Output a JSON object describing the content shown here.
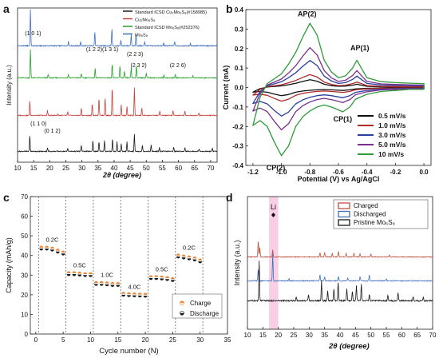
{
  "chart_data": [
    {
      "panel": "a",
      "type": "line",
      "xlabel": "2θ (degree)",
      "ylabel": "Intensity (a.u.)",
      "xlim": [
        10,
        72
      ],
      "x_ticks": [
        10,
        15,
        20,
        25,
        30,
        35,
        40,
        45,
        50,
        55,
        60,
        65,
        70
      ],
      "legend": [
        "Standard ICSD Cu₂Mo₆S₈(#158985)",
        "Cu₂Mo₆S₈",
        "Standard ICSD Mo₆S₈(#252376)",
        "Mo₆S₈"
      ],
      "series": [
        {
          "name": "Mo₆S₈",
          "color": "#3e6fbf",
          "offset": 3,
          "peaks": [
            [
              14.0,
              1.0
            ],
            [
              25.8,
              0.12
            ],
            [
              29.6,
              0.1
            ],
            [
              34.0,
              0.38
            ],
            [
              39.3,
              0.48
            ],
            [
              42.1,
              0.15
            ],
            [
              45.3,
              0.3
            ],
            [
              46.8,
              0.32
            ],
            [
              49.5,
              0.12
            ],
            [
              55.4,
              0.08
            ],
            [
              58.8,
              0.12
            ],
            [
              63.7,
              0.07
            ]
          ]
        },
        {
          "name": "Standard ICSD Mo₆S₈(#252376)",
          "color": "#27a02a",
          "offset": 2,
          "peaks": [
            [
              14.0,
              0.9
            ],
            [
              19.5,
              0.1
            ],
            [
              25.8,
              0.12
            ],
            [
              29.8,
              0.14
            ],
            [
              34.1,
              0.3
            ],
            [
              39.4,
              0.45
            ],
            [
              41.8,
              0.38
            ],
            [
              43.2,
              0.2
            ],
            [
              45.3,
              0.32
            ],
            [
              46.9,
              0.38
            ],
            [
              50.0,
              0.14
            ],
            [
              55.5,
              0.08
            ],
            [
              59.0,
              0.1
            ],
            [
              64.5,
              0.06
            ]
          ]
        },
        {
          "name": "Cu₂Mo₆S₈",
          "color": "#c9403a",
          "offset": 1,
          "peaks": [
            [
              13.8,
              0.5
            ],
            [
              19.3,
              0.18
            ],
            [
              22.5,
              0.06
            ],
            [
              25.6,
              0.12
            ],
            [
              29.8,
              0.25
            ],
            [
              33.2,
              0.4
            ],
            [
              35.3,
              0.58
            ],
            [
              37.2,
              0.6
            ],
            [
              39.4,
              0.95
            ],
            [
              42.2,
              0.35
            ],
            [
              44.0,
              0.3
            ],
            [
              46.3,
              0.92
            ],
            [
              48.6,
              0.25
            ],
            [
              54.2,
              0.15
            ],
            [
              58.3,
              0.17
            ],
            [
              62.0,
              0.16
            ],
            [
              66.3,
              0.08
            ]
          ]
        },
        {
          "name": "Standard ICSD Cu₂Mo₆S₈(#158985)",
          "color": "#1a1a1a",
          "offset": 0,
          "peaks": [
            [
              13.8,
              0.5
            ],
            [
              19.3,
              0.12
            ],
            [
              25.6,
              0.1
            ],
            [
              29.8,
              0.2
            ],
            [
              33.4,
              0.35
            ],
            [
              35.3,
              0.3
            ],
            [
              37.0,
              0.35
            ],
            [
              39.5,
              0.4
            ],
            [
              40.9,
              0.3
            ],
            [
              42.2,
              0.25
            ],
            [
              44.0,
              0.3
            ],
            [
              46.3,
              0.55
            ],
            [
              48.8,
              0.2
            ],
            [
              51.5,
              0.2
            ],
            [
              54.1,
              0.12
            ],
            [
              58.5,
              0.14
            ],
            [
              62.0,
              0.12
            ],
            [
              66.4,
              0.08
            ],
            [
              70.5,
              0.1
            ]
          ]
        }
      ],
      "annotations": [
        {
          "text": "(1 0 1)",
          "x": 14.8,
          "row": 3
        },
        {
          "text": "(1 2 2)",
          "x": 33.8,
          "row": 3
        },
        {
          "text": "(1 3 1)",
          "x": 38.8,
          "row": 3
        },
        {
          "text": "(2 2 3)",
          "x": 46.5,
          "row": 3
        },
        {
          "text": "(2 3 2)",
          "x": 47.6,
          "row": 3
        },
        {
          "text": "(2 2 6)",
          "x": 59.8,
          "row": 3
        },
        {
          "text": "(1 1 0)",
          "x": 16.5,
          "row": 1
        },
        {
          "text": "(0 1 2)",
          "x": 20.8,
          "row": 1
        }
      ]
    },
    {
      "panel": "b",
      "type": "line",
      "xlabel": "Potential (V) vs Ag/AgCl",
      "ylabel": "Current (mA)",
      "xlim": [
        -1.25,
        0.05
      ],
      "ylim": [
        -0.4,
        0.4
      ],
      "x_ticks": [
        "-1.2",
        "-1.0",
        "-0.8",
        "-0.6",
        "-0.4",
        "-0.2",
        "0.0"
      ],
      "y_ticks": [
        "-0.4",
        "-0.3",
        "-0.2",
        "-0.1",
        "0.0",
        "0.1",
        "0.2",
        "0.3",
        "0.4"
      ],
      "legend_position": "bottom-right",
      "series": [
        {
          "name": "0.5 mV/s",
          "color": "#111111",
          "scale": 0.12
        },
        {
          "name": "1.0 mV/s",
          "color": "#b02a2a",
          "scale": 0.2
        },
        {
          "name": "3.0 mV/s",
          "color": "#2b3f9e",
          "scale": 0.42
        },
        {
          "name": "5.0 mV/s",
          "color": "#7b2f8c",
          "scale": 0.62
        },
        {
          "name": "10 mV/s",
          "color": "#2e9a3a",
          "scale": 1.0
        }
      ],
      "cycle_shape": {
        "lower": [
          [
            -1.2,
            -0.195
          ],
          [
            -1.15,
            -0.17
          ],
          [
            -1.1,
            -0.2
          ],
          [
            -1.05,
            -0.28
          ],
          [
            -1.0,
            -0.35
          ],
          [
            -0.95,
            -0.3
          ],
          [
            -0.9,
            -0.2
          ],
          [
            -0.85,
            -0.15
          ],
          [
            -0.8,
            -0.12
          ],
          [
            -0.75,
            -0.1
          ],
          [
            -0.7,
            -0.09
          ],
          [
            -0.65,
            -0.1
          ],
          [
            -0.6,
            -0.115
          ],
          [
            -0.57,
            -0.125
          ],
          [
            -0.52,
            -0.1
          ],
          [
            -0.48,
            -0.06
          ],
          [
            -0.4,
            -0.035
          ],
          [
            -0.3,
            -0.02
          ],
          [
            -0.2,
            -0.015
          ],
          [
            -0.1,
            -0.01
          ],
          [
            0.0,
            -0.01
          ]
        ],
        "upper": [
          [
            -1.2,
            -0.195
          ],
          [
            -1.15,
            -0.05
          ],
          [
            -1.1,
            0.02
          ],
          [
            -1.0,
            0.07
          ],
          [
            -0.95,
            0.12
          ],
          [
            -0.9,
            0.18
          ],
          [
            -0.85,
            0.26
          ],
          [
            -0.8,
            0.33
          ],
          [
            -0.75,
            0.27
          ],
          [
            -0.7,
            0.14
          ],
          [
            -0.65,
            0.08
          ],
          [
            -0.6,
            0.05
          ],
          [
            -0.55,
            0.06
          ],
          [
            -0.5,
            0.1
          ],
          [
            -0.47,
            0.14
          ],
          [
            -0.44,
            0.1
          ],
          [
            -0.4,
            0.05
          ],
          [
            -0.3,
            0.03
          ],
          [
            -0.2,
            0.025
          ],
          [
            -0.1,
            0.022
          ],
          [
            0.0,
            0.02
          ]
        ]
      },
      "annotations": [
        {
          "text": "AP(2)",
          "x": -0.82,
          "y": 0.365
        },
        {
          "text": "AP(1)",
          "x": -0.45,
          "y": 0.19
        },
        {
          "text": "CP(1)",
          "x": -0.57,
          "y": -0.175
        },
        {
          "text": "CP(2)",
          "x": -1.04,
          "y": -0.425
        }
      ]
    },
    {
      "panel": "c",
      "type": "scatter",
      "xlabel": "Cycle number (N)",
      "ylabel": "Capacity (mAh/g)",
      "xlim": [
        -1,
        35
      ],
      "ylim": [
        0,
        70
      ],
      "x_ticks": [
        0,
        5,
        10,
        15,
        20,
        25,
        30,
        35
      ],
      "y_ticks": [
        0,
        10,
        20,
        30,
        40,
        50,
        60,
        70
      ],
      "legend_position": "bottom-right",
      "vlines": [
        0.5,
        5.5,
        10.5,
        15.5,
        20.5,
        25.5,
        30.5
      ],
      "rate_labels": [
        {
          "text": "0.2C",
          "x": 3,
          "y": 47
        },
        {
          "text": "0.5C",
          "x": 8,
          "y": 34
        },
        {
          "text": "1.0C",
          "x": 13,
          "y": 29
        },
        {
          "text": "4.0C",
          "x": 18,
          "y": 23
        },
        {
          "text": "0.5C",
          "x": 23,
          "y": 32
        },
        {
          "text": "0.2C",
          "x": 28,
          "y": 43
        }
      ],
      "series": [
        {
          "name": "Charge",
          "color": "#e8883a",
          "x": [
            1,
            2,
            3,
            4,
            5,
            6,
            7,
            8,
            9,
            10,
            11,
            12,
            13,
            14,
            15,
            16,
            17,
            18,
            19,
            20,
            21,
            22,
            23,
            24,
            25,
            26,
            27,
            28,
            29,
            30
          ],
          "values": [
            44,
            44,
            43.5,
            42.5,
            41.5,
            31,
            31,
            30.8,
            30.5,
            30.5,
            26,
            26,
            25.8,
            25.5,
            25.5,
            20.5,
            20.3,
            20.2,
            20.1,
            20,
            29,
            29,
            28.8,
            28.5,
            28,
            40,
            39.5,
            39,
            38.5,
            37.5
          ]
        },
        {
          "name": "Discharge",
          "color": "#1a1a1a",
          "x": [
            1,
            2,
            3,
            4,
            5,
            6,
            7,
            8,
            9,
            10,
            11,
            12,
            13,
            14,
            15,
            16,
            17,
            18,
            19,
            20,
            21,
            22,
            23,
            24,
            25,
            26,
            27,
            28,
            29,
            30
          ],
          "values": [
            43.5,
            43.5,
            43,
            42,
            41,
            30.5,
            30.5,
            30.3,
            30,
            30,
            25.5,
            25.5,
            25.3,
            25,
            25,
            20,
            19.8,
            19.7,
            19.6,
            19.5,
            28.5,
            28.5,
            28.3,
            28,
            27.5,
            39.5,
            39,
            38.5,
            38,
            37
          ]
        }
      ]
    },
    {
      "panel": "d",
      "type": "line",
      "xlabel": "2θ (degree)",
      "ylabel": "Intensity (a.u.)",
      "xlim": [
        10,
        70
      ],
      "x_ticks": [
        10,
        15,
        20,
        25,
        30,
        35,
        40,
        45,
        50,
        55,
        60,
        65,
        70
      ],
      "legend_position": "top-right",
      "highlight_band": [
        17,
        20
      ],
      "highlight_label": "Li",
      "series": [
        {
          "name": "Charged",
          "color": "#c0503e",
          "offset": 2,
          "peaks": [
            [
              13.5,
              0.85
            ],
            [
              14.0,
              0.5
            ],
            [
              18.2,
              0.35
            ],
            [
              33.5,
              0.22
            ],
            [
              35.0,
              0.25
            ],
            [
              37.5,
              0.2
            ],
            [
              39.5,
              0.28
            ],
            [
              42.0,
              0.18
            ],
            [
              44.5,
              0.2
            ],
            [
              46.5,
              0.18
            ],
            [
              50.0,
              0.15
            ],
            [
              56.0,
              0.1
            ]
          ]
        },
        {
          "name": "Discharged",
          "color": "#3e6fbf",
          "offset": 1,
          "peaks": [
            [
              13.5,
              0.55
            ],
            [
              18.2,
              1.3
            ],
            [
              23.5,
              0.1
            ],
            [
              33.5,
              0.3
            ],
            [
              35.0,
              0.2
            ],
            [
              39.5,
              0.2
            ],
            [
              42.5,
              0.15
            ],
            [
              46.5,
              0.2
            ],
            [
              49.5,
              0.3
            ],
            [
              55.0,
              0.08
            ]
          ]
        },
        {
          "name": "Pristine Mo₆S₈",
          "color": "#1a1a1a",
          "offset": 0,
          "peaks": [
            [
              13.8,
              1.2
            ],
            [
              25.8,
              0.12
            ],
            [
              29.8,
              0.2
            ],
            [
              34.0,
              0.6
            ],
            [
              36.0,
              0.3
            ],
            [
              38.0,
              0.35
            ],
            [
              39.4,
              0.55
            ],
            [
              42.2,
              0.35
            ],
            [
              44.0,
              0.3
            ],
            [
              45.3,
              0.45
            ],
            [
              46.9,
              0.5
            ],
            [
              49.5,
              0.2
            ],
            [
              55.5,
              0.15
            ],
            [
              58.8,
              0.25
            ],
            [
              63.7,
              0.12
            ],
            [
              67.0,
              0.1
            ]
          ]
        }
      ]
    }
  ]
}
